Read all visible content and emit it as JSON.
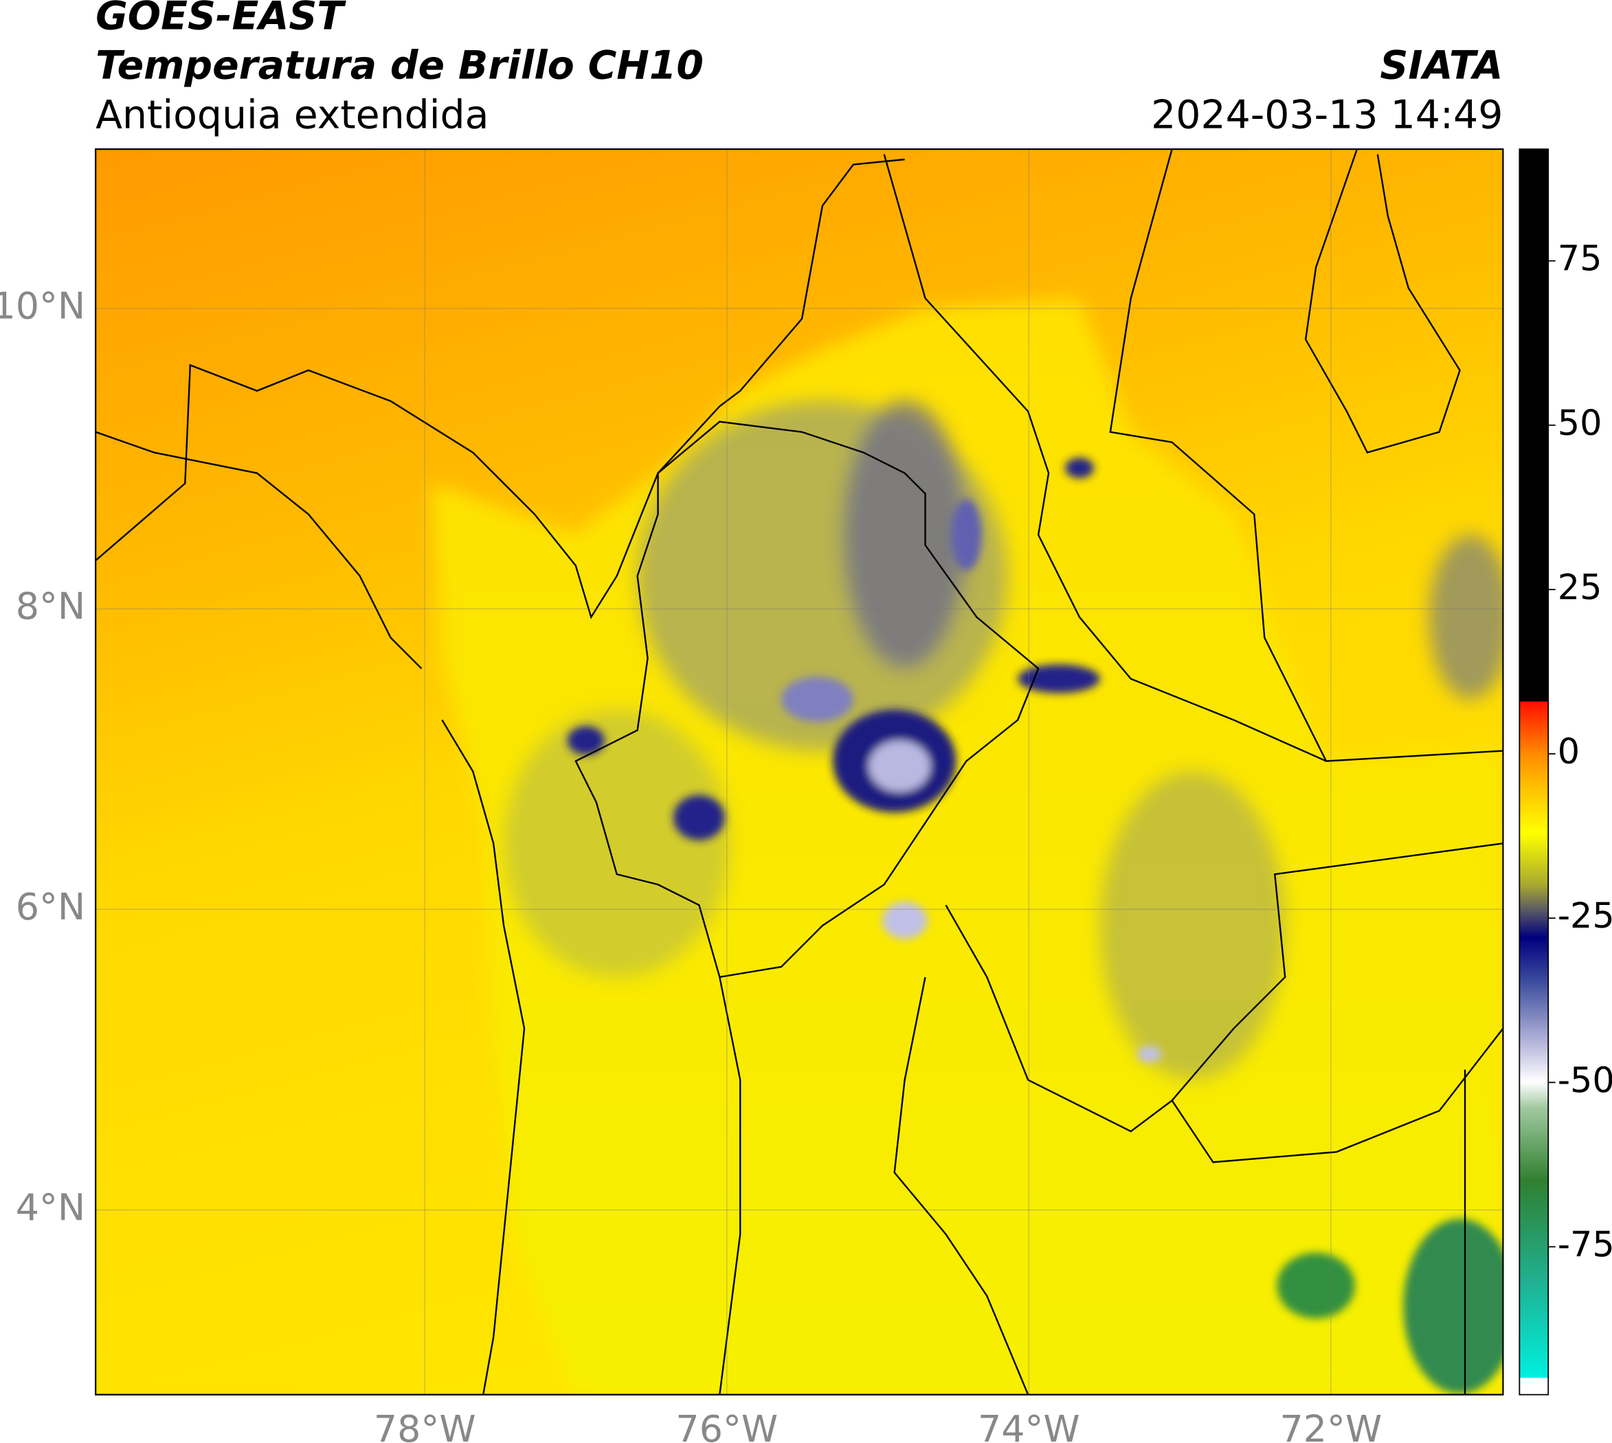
{
  "header": {
    "satellite": "GOES-EAST",
    "product": "Temperatura de Brillo CH10",
    "region": "Antioquia extendida",
    "source": "SIATA",
    "datetime": "2024-03-13 14:49"
  },
  "map": {
    "xlim": [
      -80.18,
      -70.86
    ],
    "ylim": [
      2.77,
      11.06
    ],
    "xticks": [
      {
        "value": -78,
        "label": "78°W"
      },
      {
        "value": -76,
        "label": "76°W"
      },
      {
        "value": -74,
        "label": "74°W"
      },
      {
        "value": -72,
        "label": "72°W"
      }
    ],
    "yticks": [
      {
        "value": 4,
        "label": "4°N"
      },
      {
        "value": 6,
        "label": "6°N"
      },
      {
        "value": 8,
        "label": "8°N"
      },
      {
        "value": 10,
        "label": "10°N"
      }
    ],
    "grid": true
  },
  "colorbar": {
    "lim": [
      -97.5,
      92
    ],
    "ticks": [
      -75,
      -50,
      -25,
      0,
      25,
      50,
      75
    ]
  }
}
